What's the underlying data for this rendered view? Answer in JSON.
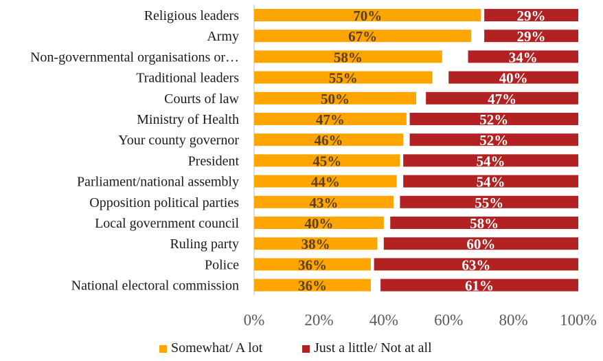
{
  "chart_data": {
    "type": "bar",
    "orientation": "horizontal",
    "stacked": true,
    "normalized": true,
    "categories": [
      "Religious leaders",
      "Army",
      "Non-governmental organisations or…",
      "Traditional leaders",
      "Courts of law",
      "Ministry of Health",
      "Your county governor",
      "President",
      "Parliament/national assembly",
      "Opposition political parties",
      "Local government council",
      "Ruling party",
      "Police",
      "National electoral commission"
    ],
    "series": [
      {
        "name": "Somewhat/ A lot",
        "color": "#FFA500",
        "label_color": "#5a4020",
        "values": [
          70,
          67,
          58,
          55,
          50,
          47,
          46,
          45,
          44,
          43,
          40,
          38,
          36,
          36
        ]
      },
      {
        "name": "Just a little/ Not at all",
        "color": "#B22222",
        "label_color": "#ffffff",
        "values": [
          29,
          29,
          34,
          40,
          47,
          52,
          52,
          54,
          54,
          55,
          58,
          60,
          63,
          61
        ]
      }
    ],
    "value_suffix": "%",
    "xlim": [
      0,
      100
    ],
    "xticks": [
      "0%",
      "20%",
      "40%",
      "60%",
      "80%",
      "100%"
    ],
    "grid": false,
    "legend_position": "bottom",
    "title": "",
    "xlabel": "",
    "ylabel": ""
  }
}
